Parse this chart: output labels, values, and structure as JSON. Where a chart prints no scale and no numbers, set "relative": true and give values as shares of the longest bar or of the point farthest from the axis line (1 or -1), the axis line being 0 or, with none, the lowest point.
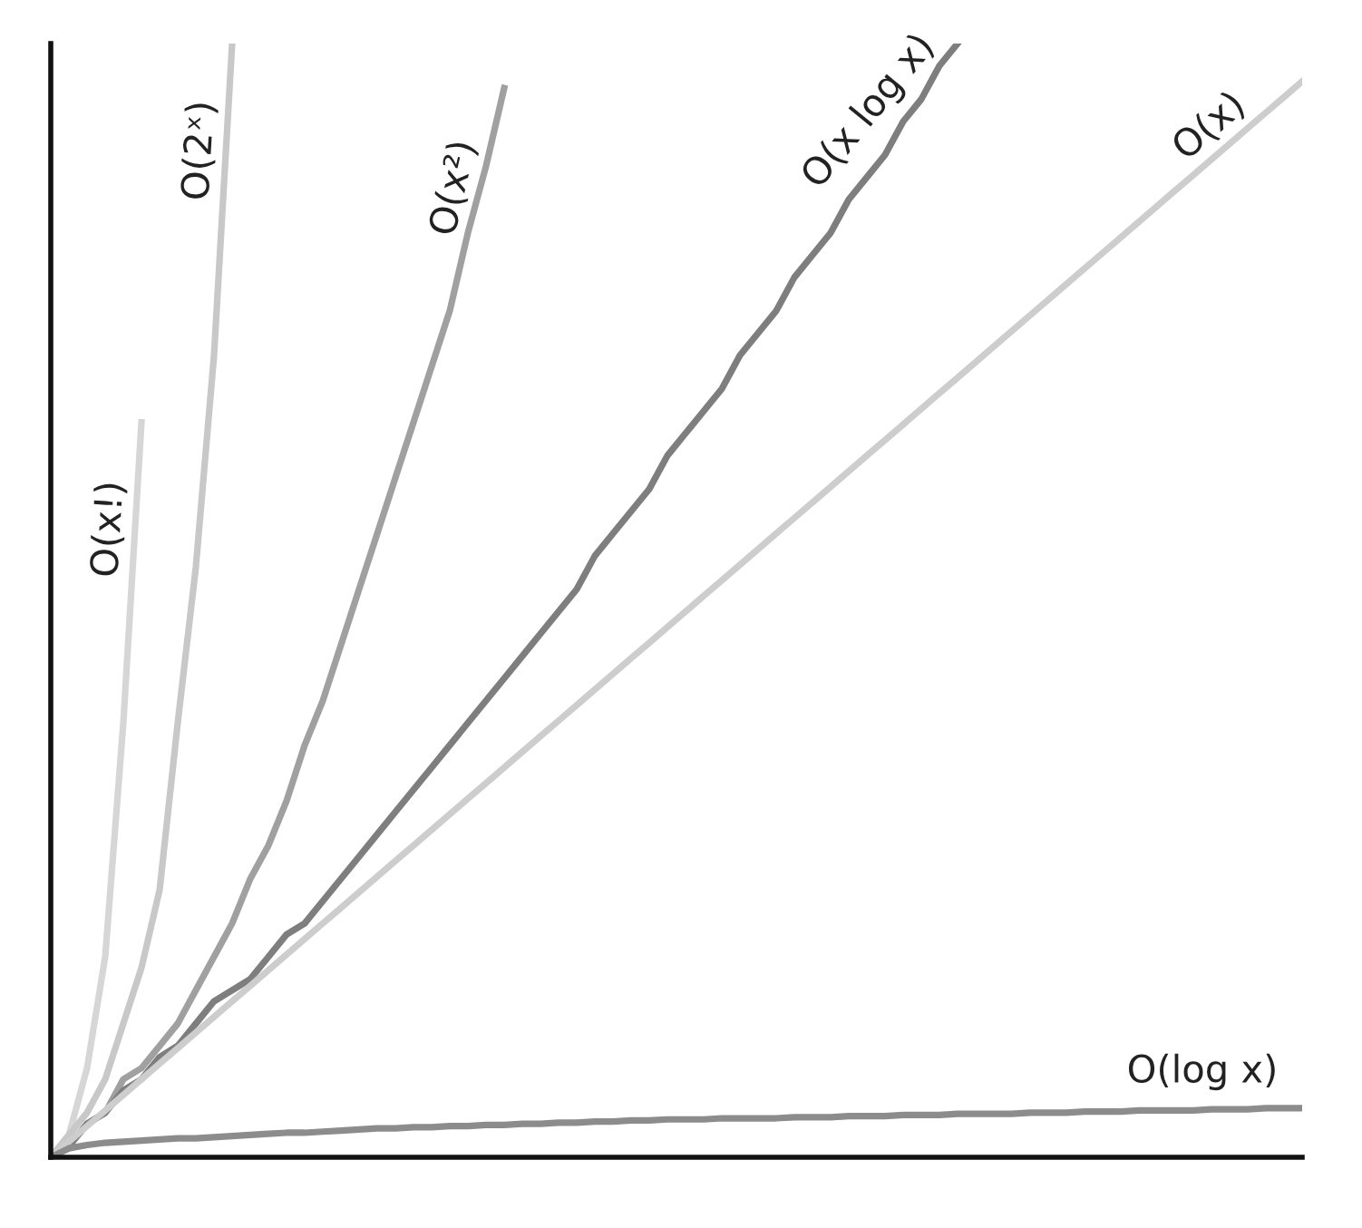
{
  "chart_data": {
    "type": "line",
    "relative": true,
    "legend": false,
    "marker": "none",
    "line_style": "solid",
    "categories": [
      null,
      null,
      null,
      null,
      null,
      null,
      null,
      null,
      null,
      null,
      null,
      null,
      null,
      null,
      null,
      null,
      null,
      null,
      null,
      null,
      null,
      null,
      null,
      null,
      null,
      null,
      null,
      null,
      null,
      null,
      null,
      null,
      null,
      null,
      null,
      null,
      null,
      null,
      null,
      null,
      null,
      null,
      null,
      null,
      null,
      null,
      null,
      null,
      null,
      null,
      null,
      null,
      null,
      null,
      null,
      null,
      null,
      null,
      null,
      null,
      null,
      null,
      null,
      null,
      null,
      null,
      null,
      null,
      null,
      null
    ],
    "series": [
      {
        "name": "O(x!)",
        "color": "#d6d6d6",
        "values": [
          0,
          0.02,
          0.08,
          0.18,
          0.39,
          0.66,
          null,
          null,
          null,
          null,
          null,
          null,
          null,
          null,
          null,
          null,
          null,
          null,
          null,
          null,
          null,
          null,
          null,
          null,
          null,
          null,
          null,
          null,
          null,
          null,
          null,
          null,
          null,
          null,
          null,
          null,
          null,
          null,
          null,
          null,
          null,
          null,
          null,
          null,
          null,
          null,
          null,
          null,
          null,
          null,
          null,
          null,
          null,
          null,
          null,
          null,
          null,
          null,
          null,
          null,
          null,
          null,
          null,
          null,
          null,
          null,
          null,
          null,
          null,
          null
        ]
      },
      {
        "name": "O(2ˣ)",
        "color": "#c8c8c8",
        "values": [
          0,
          0.02,
          0.04,
          0.07,
          0.12,
          0.17,
          0.24,
          0.39,
          0.53,
          0.72,
          1.0,
          null,
          null,
          null,
          null,
          null,
          null,
          null,
          null,
          null,
          null,
          null,
          null,
          null,
          null,
          null,
          null,
          null,
          null,
          null,
          null,
          null,
          null,
          null,
          null,
          null,
          null,
          null,
          null,
          null,
          null,
          null,
          null,
          null,
          null,
          null,
          null,
          null,
          null,
          null,
          null,
          null,
          null,
          null,
          null,
          null,
          null,
          null,
          null,
          null,
          null,
          null,
          null,
          null,
          null,
          null,
          null,
          null,
          null,
          null
        ]
      },
      {
        "name": "O(x²)",
        "color": "#a0a0a0",
        "values": [
          0,
          0.01,
          0.03,
          0.04,
          0.07,
          0.08,
          0.1,
          0.12,
          0.15,
          0.18,
          0.21,
          0.25,
          0.28,
          0.32,
          0.37,
          0.41,
          0.46,
          0.51,
          0.56,
          0.61,
          0.66,
          0.71,
          0.76,
          0.83,
          0.89,
          0.96,
          null,
          null,
          null,
          null,
          null,
          null,
          null,
          null,
          null,
          null,
          null,
          null,
          null,
          null,
          null,
          null,
          null,
          null,
          null,
          null,
          null,
          null,
          null,
          null,
          null,
          null,
          null,
          null,
          null,
          null,
          null,
          null,
          null,
          null,
          null,
          null,
          null,
          null,
          null,
          null,
          null,
          null,
          null,
          null
        ]
      },
      {
        "name": "O(x log x)",
        "color": "#7e7e7e",
        "values": [
          0,
          0.01,
          0.03,
          0.04,
          0.06,
          0.07,
          0.09,
          0.1,
          0.12,
          0.14,
          0.15,
          0.16,
          0.18,
          0.2,
          0.21,
          0.23,
          0.25,
          0.27,
          0.29,
          0.31,
          0.33,
          0.35,
          0.37,
          0.39,
          0.41,
          0.43,
          0.45,
          0.47,
          0.49,
          0.51,
          0.54,
          0.56,
          0.58,
          0.6,
          0.63,
          0.65,
          0.67,
          0.69,
          0.72,
          0.74,
          0.76,
          0.79,
          0.81,
          0.83,
          0.86,
          0.88,
          0.9,
          0.93,
          0.95,
          0.98,
          1.0,
          null,
          null,
          null,
          null,
          null,
          null,
          null,
          null,
          null,
          null,
          null,
          null,
          null,
          null,
          null,
          null,
          null,
          null,
          null
        ]
      },
      {
        "name": "O(x)",
        "color": "#cdcdcd",
        "values": [
          0,
          0.014,
          0.028,
          0.042,
          0.056,
          0.07,
          0.084,
          0.098,
          0.112,
          0.126,
          0.14,
          0.154,
          0.168,
          0.182,
          0.196,
          0.21,
          0.224,
          0.238,
          0.252,
          0.266,
          0.28,
          0.294,
          0.308,
          0.322,
          0.336,
          0.35,
          0.364,
          0.378,
          0.392,
          0.406,
          0.42,
          0.434,
          0.448,
          0.462,
          0.476,
          0.49,
          0.504,
          0.518,
          0.532,
          0.546,
          0.56,
          0.574,
          0.588,
          0.602,
          0.616,
          0.63,
          0.644,
          0.658,
          0.672,
          0.686,
          0.7,
          0.714,
          0.728,
          0.742,
          0.756,
          0.77,
          0.784,
          0.798,
          0.812,
          0.826,
          0.84,
          0.854,
          0.868,
          0.882,
          0.896,
          0.91,
          0.924,
          0.938,
          0.952,
          0.966
        ]
      },
      {
        "name": "O(log x)",
        "color": "#8c8c8c",
        "values": [
          0,
          0.008,
          0.011,
          0.013,
          0.014,
          0.015,
          0.016,
          0.017,
          0.017,
          0.018,
          0.019,
          0.02,
          0.021,
          0.022,
          0.022,
          0.023,
          0.024,
          0.025,
          0.026,
          0.026,
          0.027,
          0.027,
          0.028,
          0.028,
          0.029,
          0.029,
          0.03,
          0.03,
          0.031,
          0.031,
          0.032,
          0.032,
          0.033,
          0.033,
          0.034,
          0.034,
          0.034,
          0.035,
          0.035,
          0.035,
          0.035,
          0.036,
          0.036,
          0.036,
          0.037,
          0.037,
          0.037,
          0.038,
          0.038,
          0.038,
          0.039,
          0.039,
          0.039,
          0.039,
          0.04,
          0.04,
          0.04,
          0.041,
          0.041,
          0.041,
          0.042,
          0.042,
          0.042,
          0.042,
          0.043,
          0.043,
          0.043,
          0.044,
          0.044,
          0.044
        ]
      }
    ]
  }
}
